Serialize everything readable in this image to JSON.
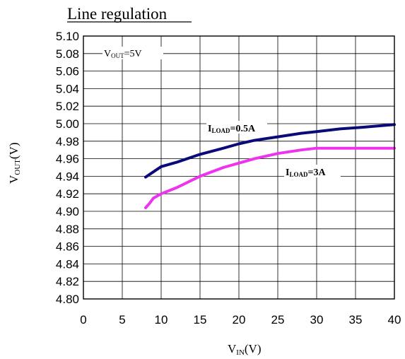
{
  "chart_data": {
    "type": "line",
    "title": "Line regulation",
    "xlabel_main": "V",
    "xlabel_sub": "IN",
    "xlabel_unit": "(V)",
    "ylabel_main": "V",
    "ylabel_sub": "OUT",
    "ylabel_unit": "(V)",
    "xlim": [
      0,
      40
    ],
    "ylim": [
      4.8,
      5.1
    ],
    "x_ticks": [
      "0",
      "5",
      "10",
      "15",
      "20",
      "25",
      "30",
      "35",
      "40"
    ],
    "y_ticks": [
      "5.10",
      "5.08",
      "5.06",
      "5.04",
      "5.02",
      "5.00",
      "4.98",
      "4.96",
      "4.94",
      "4.92",
      "4.90",
      "4.88",
      "4.86",
      "4.84",
      "4.82",
      "4.80"
    ],
    "grid": true,
    "annotation": {
      "main": "V",
      "sub": "OUT",
      "rest": "=5V"
    },
    "series": [
      {
        "name_main": "I",
        "name_sub": "LOAD",
        "name_rest": "=0.5A",
        "color": "#0a0a78",
        "x": [
          8,
          9,
          10,
          12,
          15,
          18,
          20,
          22,
          25,
          28,
          30,
          33,
          36,
          40
        ],
        "y": [
          4.939,
          4.945,
          4.951,
          4.956,
          4.965,
          4.972,
          4.977,
          4.981,
          4.985,
          4.989,
          4.991,
          4.994,
          4.996,
          4.999
        ]
      },
      {
        "name_main": "I",
        "name_sub": "LOAD",
        "name_rest": "=3A",
        "color": "#ee33ee",
        "x": [
          8,
          8.5,
          9,
          10,
          12,
          15,
          18,
          20,
          22,
          25,
          28,
          30,
          33,
          36,
          40
        ],
        "y": [
          4.904,
          4.909,
          4.915,
          4.92,
          4.927,
          4.94,
          4.95,
          4.955,
          4.96,
          4.966,
          4.97,
          4.972,
          4.972,
          4.972,
          4.972
        ]
      }
    ]
  }
}
